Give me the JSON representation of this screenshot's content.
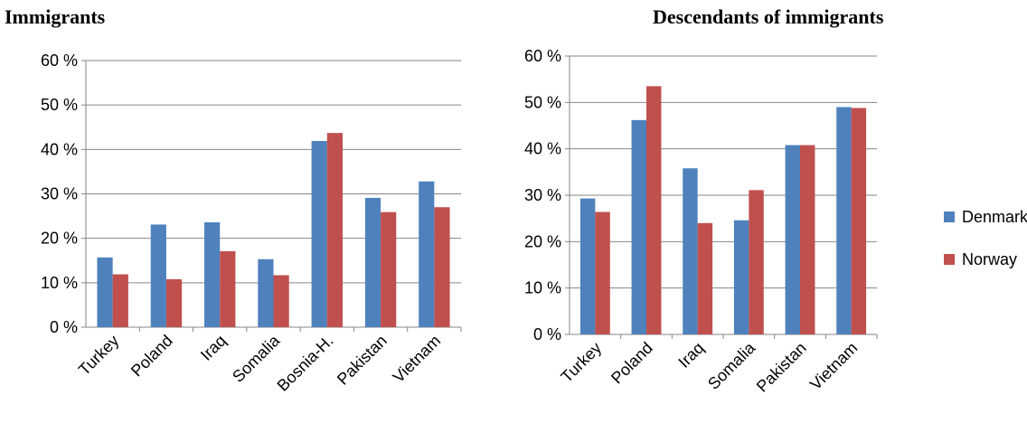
{
  "colors": {
    "denmark": "#4F81BD",
    "norway": "#C0504D",
    "axis": "#868686"
  },
  "legend": [
    {
      "name": "Denmark",
      "color": "#4F81BD"
    },
    {
      "name": "Norway",
      "color": "#C0504D"
    }
  ],
  "chart_data": [
    {
      "type": "bar",
      "title": "Immigrants",
      "categories": [
        "Turkey",
        "Poland",
        "Iraq",
        "Somalia",
        "Bosnia-H.",
        "Pakistan",
        "Vietnam"
      ],
      "series": [
        {
          "name": "Denmark",
          "values": [
            15.7,
            23.1,
            23.6,
            15.3,
            41.9,
            29.1,
            32.8
          ]
        },
        {
          "name": "Norway",
          "values": [
            11.9,
            10.8,
            17.1,
            11.7,
            43.7,
            25.9,
            27.0
          ]
        }
      ],
      "ylim": [
        0,
        60
      ],
      "yticks": [
        "0 %",
        "10 %",
        "20 %",
        "30 %",
        "40 %",
        "50 %",
        "60 %"
      ],
      "grid": true,
      "legend": "right"
    },
    {
      "type": "bar",
      "title": "Descendants of immigrants",
      "categories": [
        "Turkey",
        "Poland",
        "Iraq",
        "Somalia",
        "Pakistan",
        "Vietnam"
      ],
      "series": [
        {
          "name": "Denmark",
          "values": [
            29.3,
            46.2,
            35.8,
            24.6,
            40.8,
            49.0
          ]
        },
        {
          "name": "Norway",
          "values": [
            26.4,
            53.5,
            24.0,
            31.1,
            40.8,
            48.8
          ]
        }
      ],
      "ylim": [
        0,
        60
      ],
      "yticks": [
        "0 %",
        "10 %",
        "20 %",
        "30 %",
        "40 %",
        "50 %",
        "60 %"
      ],
      "grid": true,
      "legend": "right"
    }
  ]
}
